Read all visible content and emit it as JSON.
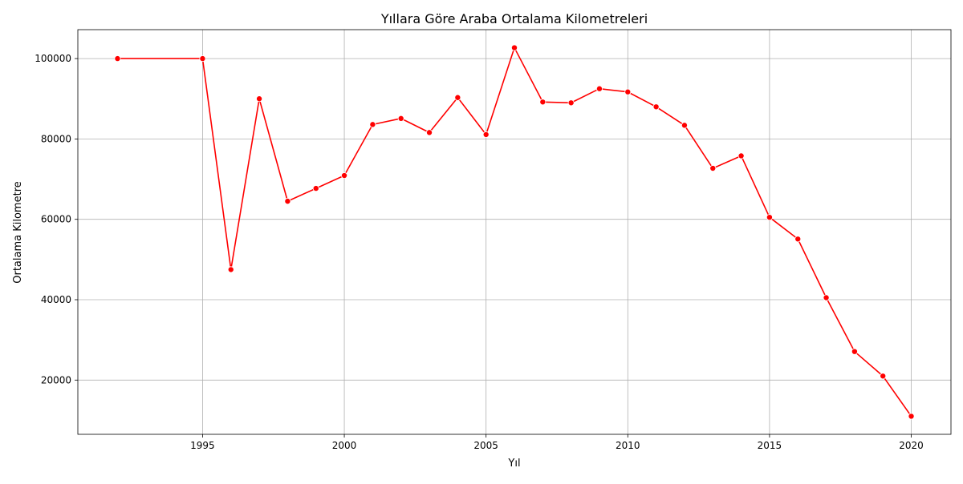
{
  "chart_data": {
    "type": "line",
    "title": "Yıllara Göre Araba Ortalama Kilometreleri",
    "xlabel": "Yıl",
    "ylabel": "Ortalama Kilometre",
    "xlim": [
      1990.6,
      2021.4
    ],
    "ylim": [
      6500,
      107200
    ],
    "x_ticks": [
      1995,
      2000,
      2005,
      2010,
      2015,
      2020
    ],
    "y_ticks": [
      20000,
      40000,
      60000,
      80000,
      100000
    ],
    "grid": true,
    "line_color": "#ff0000",
    "marker": "circle",
    "series": [
      {
        "x": [
          1992,
          1995,
          1996,
          1997,
          1998,
          1999,
          2000,
          2001,
          2002,
          2003,
          2004,
          2005,
          2006,
          2007,
          2008,
          2009,
          2010,
          2011,
          2012,
          2013,
          2014,
          2015,
          2016,
          2017,
          2018,
          2019,
          2020
        ],
        "values": [
          100000,
          100000,
          47500,
          90000,
          64500,
          67700,
          70900,
          83600,
          85100,
          81600,
          90300,
          81100,
          102700,
          89200,
          89000,
          92500,
          91700,
          88000,
          83400,
          72700,
          75800,
          60500,
          55100,
          40500,
          27100,
          21000,
          11000
        ]
      }
    ]
  }
}
